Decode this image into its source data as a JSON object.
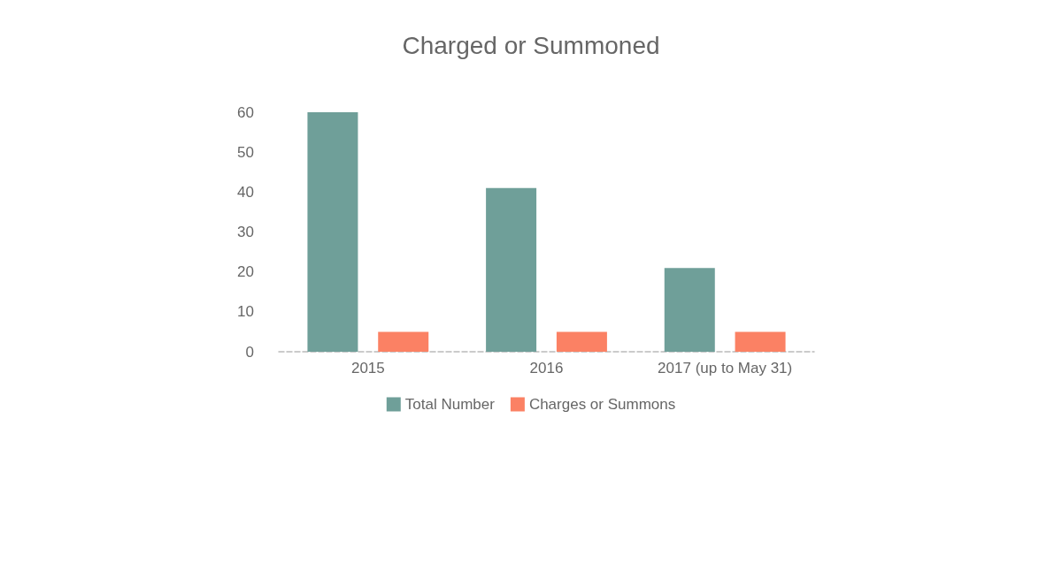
{
  "chart_data": {
    "type": "bar",
    "title": "Charged or Summoned",
    "categories": [
      "2015",
      "2016",
      "2017 (up to May 31)"
    ],
    "series": [
      {
        "name": "Total Number",
        "color": "#6f9f99",
        "values": [
          60,
          41,
          21
        ]
      },
      {
        "name": "Charges or Summons",
        "color": "#fb8164",
        "values": [
          5,
          5,
          5
        ]
      }
    ],
    "ylim": [
      0,
      60
    ],
    "yticks": [
      0,
      10,
      20,
      30,
      40,
      50,
      60
    ],
    "grid": false,
    "legend": "bottom"
  }
}
